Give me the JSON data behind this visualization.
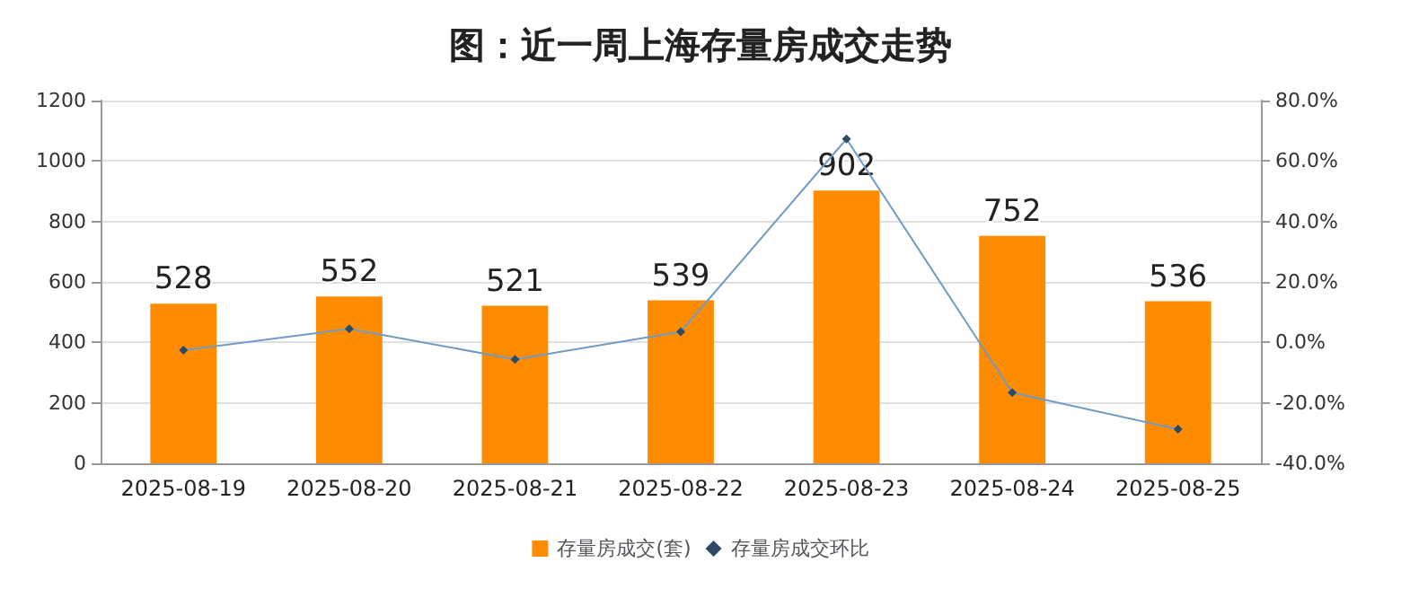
{
  "chart_data": {
    "type": "bar",
    "title": "图：近一周上海存量房成交走势",
    "categories": [
      "2025-08-19",
      "2025-08-20",
      "2025-08-21",
      "2025-08-22",
      "2025-08-23",
      "2025-08-24",
      "2025-08-25"
    ],
    "series": [
      {
        "name": "存量房成交(套)",
        "type": "bar",
        "color": "#ff8c00",
        "values": [
          528,
          552,
          521,
          539,
          902,
          752,
          536
        ],
        "data_labels": true
      },
      {
        "name": "存量房成交环比",
        "type": "line",
        "axis": "y2",
        "color": "#6f9cc6",
        "marker": "diamond",
        "values": [
          -2.6,
          4.5,
          -5.6,
          3.5,
          67.3,
          -16.6,
          -28.7
        ]
      }
    ],
    "ylim": [
      0,
      1200
    ],
    "yticks": [
      0,
      200,
      400,
      600,
      800,
      1000,
      1200
    ],
    "y2lim": [
      -40,
      80
    ],
    "y2ticks": [
      {
        "value": -40,
        "label": "-40.0%"
      },
      {
        "value": -20,
        "label": "-20.0%"
      },
      {
        "value": 0,
        "label": "0.0%"
      },
      {
        "value": 20,
        "label": "20.0%"
      },
      {
        "value": 40,
        "label": "40.0%"
      },
      {
        "value": 60,
        "label": "60.0%"
      },
      {
        "value": 80,
        "label": "80.0%"
      }
    ],
    "grid": "y",
    "legend": "bottom"
  }
}
